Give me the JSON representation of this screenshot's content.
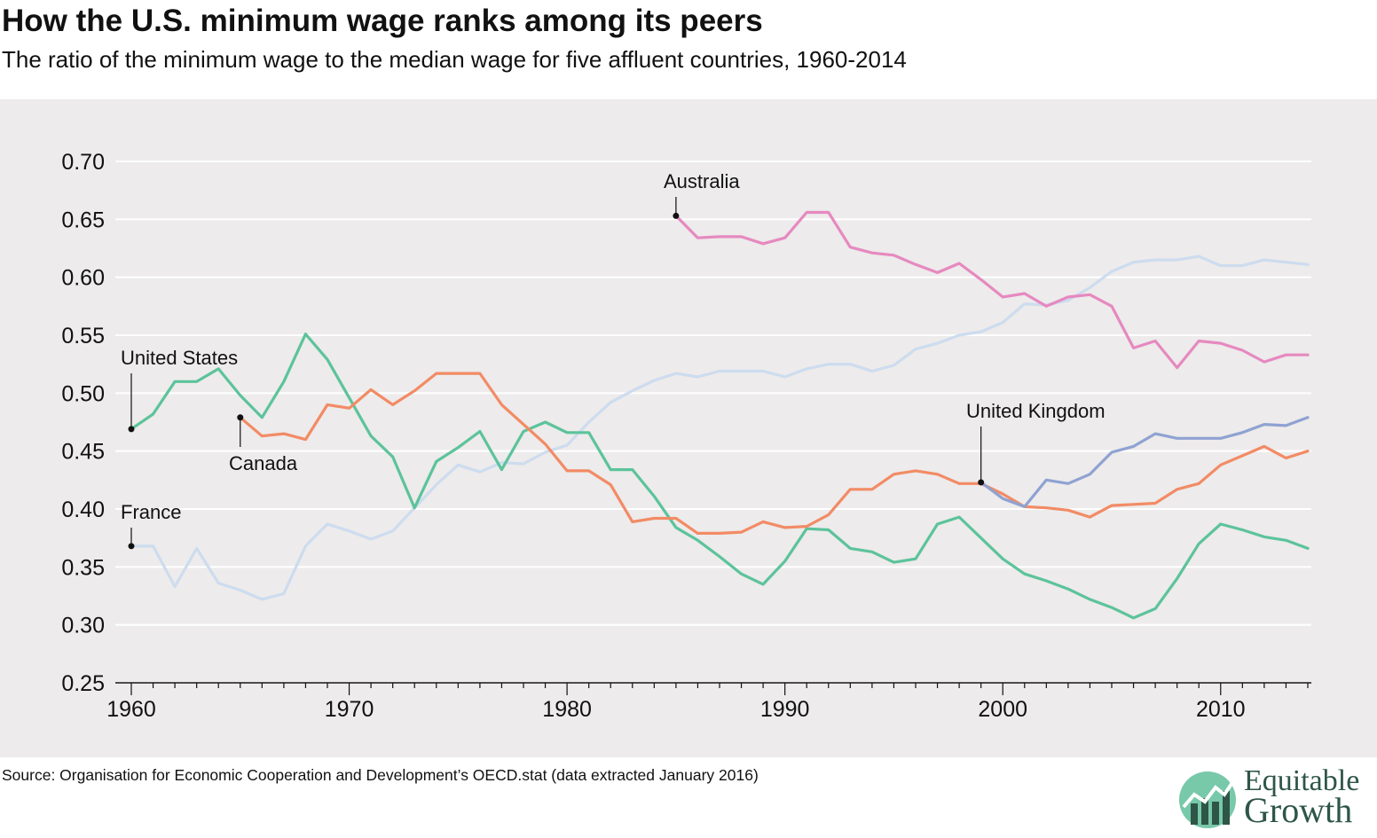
{
  "header": {
    "title": "How the U.S. minimum wage ranks among its peers",
    "subtitle": "The ratio of the minimum wage to the median wage for five affluent countries, 1960-2014"
  },
  "footer": {
    "source": "Source: Organisation for Economic Cooperation and Development’s OECD.stat (data extracted January 2016)"
  },
  "brand": {
    "line1": "Equitable",
    "line2": "Growth",
    "text_color": "#2e5548",
    "mark_color": "#5fbf9a"
  },
  "chart_data": {
    "type": "line",
    "xlim": [
      1960,
      2014
    ],
    "ylim": [
      0.25,
      0.7
    ],
    "x_ticks": [
      1960,
      1970,
      1980,
      1990,
      2000,
      2010
    ],
    "y_ticks": [
      "0.25",
      "0.30",
      "0.35",
      "0.40",
      "0.45",
      "0.50",
      "0.55",
      "0.60",
      "0.65",
      "0.70"
    ],
    "grid": "horizontal",
    "legend": "direct labels",
    "series": [
      {
        "name": "France",
        "color": "#cddcef",
        "x": [
          1960,
          1961,
          1962,
          1963,
          1964,
          1965,
          1966,
          1967,
          1968,
          1969,
          1970,
          1971,
          1972,
          1973,
          1974,
          1975,
          1976,
          1977,
          1978,
          1979,
          1980,
          1981,
          1982,
          1983,
          1984,
          1985,
          1986,
          1987,
          1988,
          1989,
          1990,
          1991,
          1992,
          1993,
          1994,
          1995,
          1996,
          1997,
          1998,
          1999,
          2000,
          2001,
          2002,
          2003,
          2004,
          2005,
          2006,
          2007,
          2008,
          2009,
          2010,
          2011,
          2012,
          2013,
          2014
        ],
        "values": [
          0.368,
          0.368,
          0.333,
          0.366,
          0.336,
          0.33,
          0.322,
          0.327,
          0.368,
          0.387,
          0.381,
          0.374,
          0.381,
          0.401,
          0.421,
          0.438,
          0.432,
          0.44,
          0.439,
          0.449,
          0.455,
          0.475,
          0.492,
          0.502,
          0.511,
          0.517,
          0.514,
          0.519,
          0.519,
          0.519,
          0.514,
          0.521,
          0.525,
          0.525,
          0.519,
          0.524,
          0.538,
          0.543,
          0.55,
          0.553,
          0.561,
          0.577,
          0.576,
          0.58,
          0.591,
          0.605,
          0.613,
          0.615,
          0.615,
          0.618,
          0.61,
          0.61,
          0.615,
          0.613,
          0.611
        ],
        "label": "France"
      },
      {
        "name": "United States",
        "color": "#5cc39b",
        "x": [
          1960,
          1961,
          1962,
          1963,
          1964,
          1965,
          1966,
          1967,
          1968,
          1969,
          1970,
          1971,
          1972,
          1973,
          1974,
          1975,
          1976,
          1977,
          1978,
          1979,
          1980,
          1981,
          1982,
          1983,
          1984,
          1985,
          1986,
          1987,
          1988,
          1989,
          1990,
          1991,
          1992,
          1993,
          1994,
          1995,
          1996,
          1997,
          1998,
          1999,
          2000,
          2001,
          2002,
          2003,
          2004,
          2005,
          2006,
          2007,
          2008,
          2009,
          2010,
          2011,
          2012,
          2013,
          2014
        ],
        "values": [
          0.469,
          0.482,
          0.51,
          0.51,
          0.521,
          0.498,
          0.479,
          0.51,
          0.551,
          0.529,
          0.496,
          0.463,
          0.445,
          0.401,
          0.441,
          0.453,
          0.467,
          0.434,
          0.467,
          0.475,
          0.466,
          0.466,
          0.434,
          0.434,
          0.411,
          0.384,
          0.373,
          0.359,
          0.344,
          0.335,
          0.355,
          0.383,
          0.382,
          0.366,
          0.363,
          0.354,
          0.357,
          0.387,
          0.393,
          0.375,
          0.357,
          0.344,
          0.338,
          0.331,
          0.322,
          0.315,
          0.306,
          0.314,
          0.34,
          0.37,
          0.387,
          0.382,
          0.376,
          0.373,
          0.366
        ],
        "label": "United States"
      },
      {
        "name": "Canada",
        "color": "#f28b65",
        "x": [
          1965,
          1966,
          1967,
          1968,
          1969,
          1970,
          1971,
          1972,
          1973,
          1974,
          1975,
          1976,
          1977,
          1978,
          1979,
          1980,
          1981,
          1982,
          1983,
          1984,
          1985,
          1986,
          1987,
          1988,
          1989,
          1990,
          1991,
          1992,
          1993,
          1994,
          1995,
          1996,
          1997,
          1998,
          1999,
          2000,
          2001,
          2002,
          2003,
          2004,
          2005,
          2006,
          2007,
          2008,
          2009,
          2010,
          2011,
          2012,
          2013,
          2014
        ],
        "values": [
          0.479,
          0.463,
          0.465,
          0.46,
          0.49,
          0.487,
          0.503,
          0.49,
          0.502,
          0.517,
          0.517,
          0.517,
          0.49,
          0.473,
          0.456,
          0.433,
          0.433,
          0.421,
          0.389,
          0.392,
          0.392,
          0.379,
          0.379,
          0.38,
          0.389,
          0.384,
          0.385,
          0.395,
          0.417,
          0.417,
          0.43,
          0.433,
          0.43,
          0.422,
          0.422,
          0.413,
          0.402,
          0.401,
          0.399,
          0.393,
          0.403,
          0.404,
          0.405,
          0.417,
          0.422,
          0.438,
          0.446,
          0.454,
          0.444,
          0.45
        ],
        "label": "Canada"
      },
      {
        "name": "United Kingdom",
        "color": "#8fa2d2",
        "x": [
          1999,
          2000,
          2001,
          2002,
          2003,
          2004,
          2005,
          2006,
          2007,
          2008,
          2009,
          2010,
          2011,
          2012,
          2013,
          2014
        ],
        "values": [
          0.423,
          0.409,
          0.402,
          0.425,
          0.422,
          0.43,
          0.449,
          0.454,
          0.465,
          0.461,
          0.461,
          0.461,
          0.466,
          0.473,
          0.472,
          0.479
        ],
        "label": "United Kingdom"
      },
      {
        "name": "Australia",
        "color": "#e689c0",
        "x": [
          1985,
          1986,
          1987,
          1988,
          1989,
          1990,
          1991,
          1992,
          1993,
          1994,
          1995,
          1996,
          1997,
          1998,
          1999,
          2000,
          2001,
          2002,
          2003,
          2004,
          2005,
          2006,
          2007,
          2008,
          2009,
          2010,
          2011,
          2012,
          2013,
          2014
        ],
        "values": [
          0.653,
          0.634,
          0.635,
          0.635,
          0.629,
          0.634,
          0.656,
          0.656,
          0.626,
          0.621,
          0.619,
          0.611,
          0.604,
          0.612,
          0.598,
          0.583,
          0.586,
          0.575,
          0.583,
          0.585,
          0.575,
          0.539,
          0.545,
          0.522,
          0.545,
          0.543,
          0.537,
          0.527,
          0.533,
          0.533
        ],
        "label": "Australia"
      }
    ]
  }
}
